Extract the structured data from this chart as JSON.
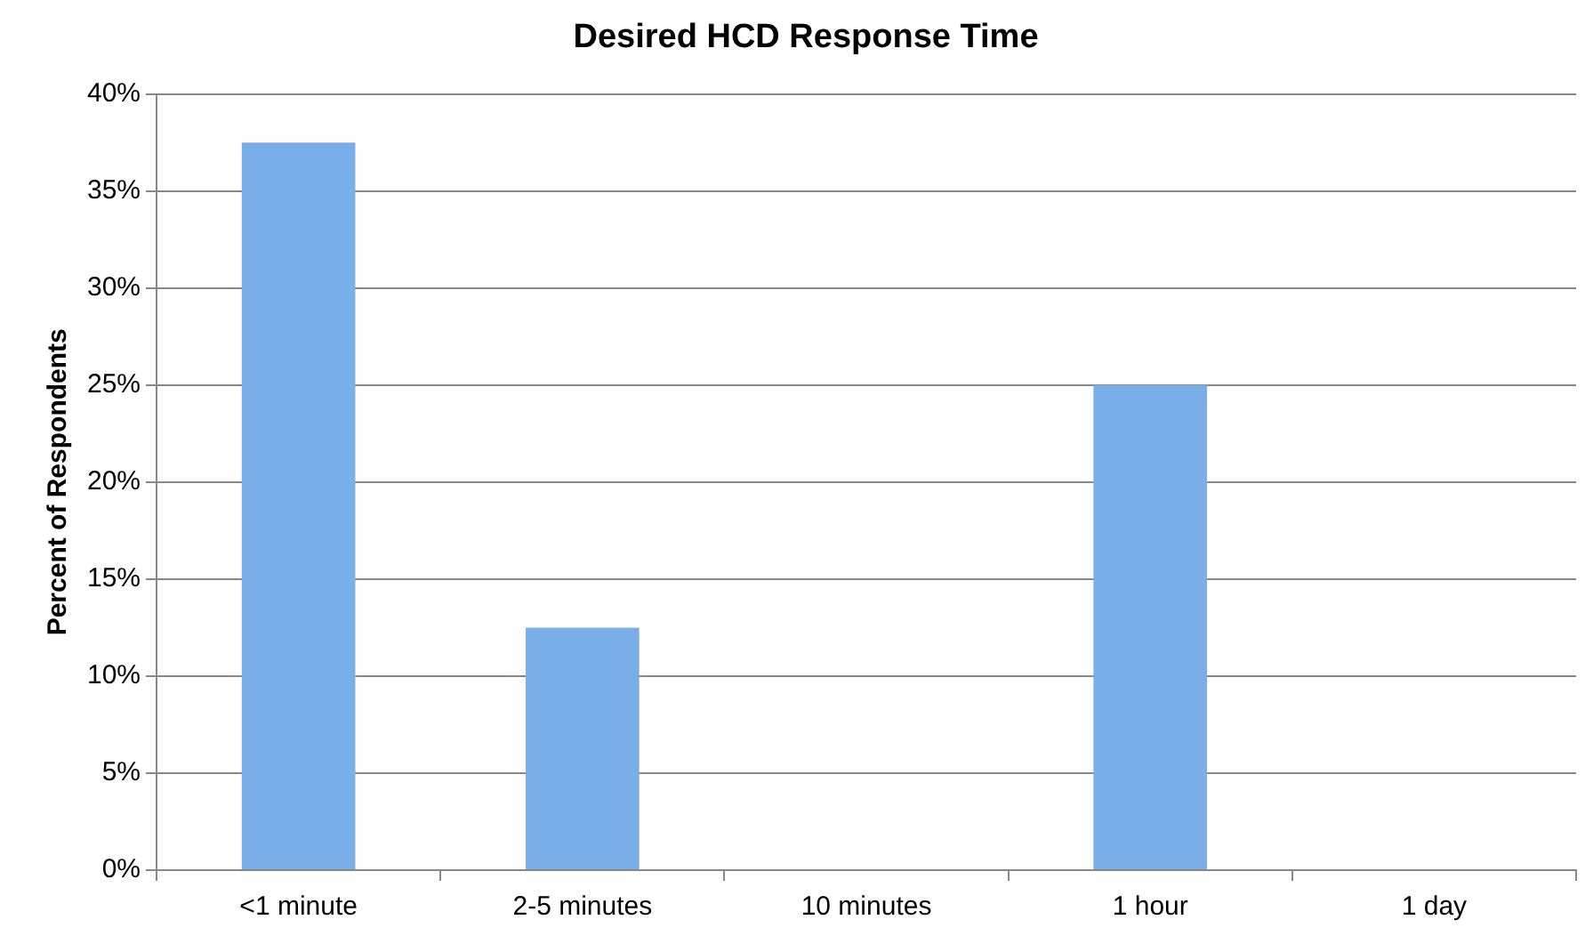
{
  "chart_data": {
    "type": "bar",
    "title": "Desired HCD Response Time",
    "ylabel": "Percent of Respondents",
    "categories": [
      "<1 minute",
      "2-5 minutes",
      "10 minutes",
      "1 hour",
      "1 day"
    ],
    "values": [
      37.5,
      12.5,
      0,
      25,
      0
    ],
    "color": "#7aaee8",
    "ylim": [
      0,
      40
    ],
    "yticks": [
      {
        "value": 0,
        "label": "0%"
      },
      {
        "value": 5,
        "label": "5%"
      },
      {
        "value": 10,
        "label": "10%"
      },
      {
        "value": 15,
        "label": "15%"
      },
      {
        "value": 20,
        "label": "20%"
      },
      {
        "value": 25,
        "label": "25%"
      },
      {
        "value": 30,
        "label": "30%"
      },
      {
        "value": 35,
        "label": "35%"
      },
      {
        "value": 40,
        "label": "40%"
      }
    ],
    "grid": "y",
    "legend": false
  }
}
